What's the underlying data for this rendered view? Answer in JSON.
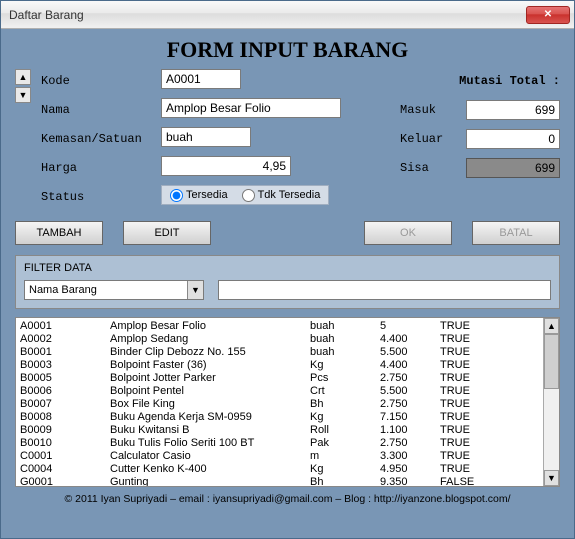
{
  "window": {
    "title": "Daftar Barang"
  },
  "heading": "FORM INPUT BARANG",
  "labels": {
    "kode": "Kode",
    "nama": "Nama",
    "kemasan": "Kemasan/Satuan",
    "harga": "Harga",
    "status": "Status"
  },
  "fields": {
    "kode": "A0001",
    "nama": "Amplop Besar Folio",
    "kemasan": "buah",
    "harga": "4,95"
  },
  "status": {
    "tersedia_label": "Tersedia",
    "tdk_label": "Tdk Tersedia",
    "selected": "tersedia"
  },
  "mutasi": {
    "title": "Mutasi Total :",
    "masuk_label": "Masuk",
    "keluar_label": "Keluar",
    "sisa_label": "Sisa",
    "masuk": "699",
    "keluar": "0",
    "sisa": "699"
  },
  "buttons": {
    "tambah": "TAMBAH",
    "edit": "EDIT",
    "ok": "OK",
    "batal": "BATAL"
  },
  "filter": {
    "title": "FILTER DATA",
    "combo_value": "Nama Barang",
    "search_value": ""
  },
  "grid": {
    "rows": [
      {
        "kode": "A0001",
        "nama": "Amplop Besar Folio",
        "kemasan": "buah",
        "harga": "5",
        "status": "TRUE"
      },
      {
        "kode": "A0002",
        "nama": "Amplop Sedang",
        "kemasan": "buah",
        "harga": "4.400",
        "status": "TRUE"
      },
      {
        "kode": "B0001",
        "nama": "Binder Clip Debozz No. 155",
        "kemasan": "buah",
        "harga": "5.500",
        "status": "TRUE"
      },
      {
        "kode": "B0003",
        "nama": "Bolpoint Faster (36)",
        "kemasan": "Kg",
        "harga": "4.400",
        "status": "TRUE"
      },
      {
        "kode": "B0005",
        "nama": "Bolpoint Jotter Parker",
        "kemasan": "Pcs",
        "harga": "2.750",
        "status": "TRUE"
      },
      {
        "kode": "B0006",
        "nama": "Bolpoint Pentel",
        "kemasan": "Crt",
        "harga": "5.500",
        "status": "TRUE"
      },
      {
        "kode": "B0007",
        "nama": "Box File King",
        "kemasan": "Bh",
        "harga": "2.750",
        "status": "TRUE"
      },
      {
        "kode": "B0008",
        "nama": "Buku Agenda Kerja SM-0959",
        "kemasan": "Kg",
        "harga": "7.150",
        "status": "TRUE"
      },
      {
        "kode": "B0009",
        "nama": "Buku Kwitansi B",
        "kemasan": "Roll",
        "harga": "1.100",
        "status": "TRUE"
      },
      {
        "kode": "B0010",
        "nama": "Buku Tulis Folio Seriti 100 BT",
        "kemasan": "Pak",
        "harga": "2.750",
        "status": "TRUE"
      },
      {
        "kode": "C0001",
        "nama": "Calculator Casio",
        "kemasan": "m",
        "harga": "3.300",
        "status": "TRUE"
      },
      {
        "kode": "C0004",
        "nama": "Cutter Kenko K-400",
        "kemasan": "Kg",
        "harga": "4.950",
        "status": "TRUE"
      },
      {
        "kode": "G0001",
        "nama": "Gunting",
        "kemasan": "Bh",
        "harga": "9.350",
        "status": "FALSE"
      }
    ]
  },
  "footer": "© 2011 Iyan Supriyadi – email  :  iyansupriyadi@gmail.com – Blog : http://iyanzone.blogspot.com/",
  "colors": {
    "window_bg": "#7996b5",
    "panel_bg": "#adc0d4",
    "accent": "#d9534f"
  }
}
